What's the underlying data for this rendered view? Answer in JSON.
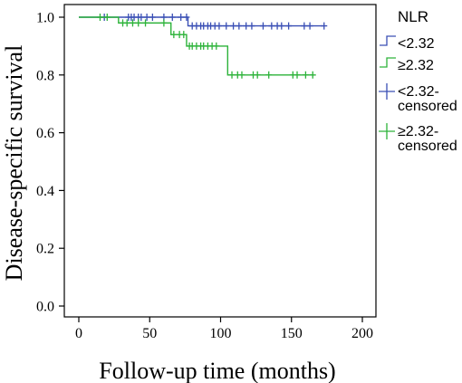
{
  "chart_data": {
    "type": "line",
    "subtype": "kaplan-meier",
    "xlabel": "Follow-up time (months)",
    "ylabel": "Disease-specific survival",
    "xlim": [
      0,
      200
    ],
    "ylim": [
      0,
      1.0
    ],
    "x_ticks": [
      0,
      50,
      100,
      150,
      200
    ],
    "x_tick_labels": [
      "0",
      "50",
      "100",
      "150",
      "200"
    ],
    "y_ticks": [
      0.0,
      0.2,
      0.4,
      0.6,
      0.8,
      1.0
    ],
    "y_tick_labels": [
      "0.0",
      "0.2",
      "0.4",
      "0.6",
      "0.8",
      "1.0"
    ],
    "grid": false,
    "legend_placement": "right",
    "legend_title": "NLR",
    "series": [
      {
        "name": "<2.32",
        "color": "#3a4fb5",
        "steps": [
          [
            0,
            1.0
          ],
          [
            77,
            1.0
          ],
          [
            77,
            0.97
          ],
          [
            173,
            0.97
          ]
        ],
        "censored": [
          [
            18,
            1.0
          ],
          [
            35,
            1.0
          ],
          [
            37,
            1.0
          ],
          [
            39,
            1.0
          ],
          [
            42,
            1.0
          ],
          [
            44,
            1.0
          ],
          [
            48,
            1.0
          ],
          [
            52,
            1.0
          ],
          [
            60,
            1.0
          ],
          [
            66,
            1.0
          ],
          [
            72,
            1.0
          ],
          [
            76,
            1.0
          ],
          [
            80,
            0.97
          ],
          [
            83,
            0.97
          ],
          [
            86,
            0.97
          ],
          [
            88,
            0.97
          ],
          [
            91,
            0.97
          ],
          [
            93,
            0.97
          ],
          [
            96,
            0.97
          ],
          [
            99,
            0.97
          ],
          [
            104,
            0.97
          ],
          [
            109,
            0.97
          ],
          [
            113,
            0.97
          ],
          [
            118,
            0.97
          ],
          [
            122,
            0.97
          ],
          [
            130,
            0.97
          ],
          [
            136,
            0.97
          ],
          [
            140,
            0.97
          ],
          [
            143,
            0.97
          ],
          [
            148,
            0.97
          ],
          [
            159,
            0.97
          ],
          [
            163,
            0.97
          ],
          [
            173,
            0.97
          ]
        ]
      },
      {
        "name": "≥2.32",
        "color": "#2db33a",
        "steps": [
          [
            0,
            1.0
          ],
          [
            28,
            1.0
          ],
          [
            28,
            0.98
          ],
          [
            65,
            0.98
          ],
          [
            65,
            0.94
          ],
          [
            76,
            0.94
          ],
          [
            76,
            0.9
          ],
          [
            105,
            0.9
          ],
          [
            105,
            0.8
          ],
          [
            165,
            0.8
          ]
        ],
        "censored": [
          [
            15,
            1.0
          ],
          [
            20,
            1.0
          ],
          [
            31,
            0.98
          ],
          [
            34,
            0.98
          ],
          [
            38,
            0.98
          ],
          [
            42,
            0.98
          ],
          [
            47,
            0.98
          ],
          [
            60,
            0.98
          ],
          [
            67,
            0.94
          ],
          [
            71,
            0.94
          ],
          [
            74,
            0.94
          ],
          [
            78,
            0.9
          ],
          [
            80,
            0.9
          ],
          [
            83,
            0.9
          ],
          [
            86,
            0.9
          ],
          [
            88,
            0.9
          ],
          [
            91,
            0.9
          ],
          [
            94,
            0.9
          ],
          [
            97,
            0.9
          ],
          [
            108,
            0.8
          ],
          [
            112,
            0.8
          ],
          [
            115,
            0.8
          ],
          [
            123,
            0.8
          ],
          [
            126,
            0.8
          ],
          [
            134,
            0.8
          ],
          [
            151,
            0.8
          ],
          [
            154,
            0.8
          ],
          [
            160,
            0.8
          ],
          [
            165,
            0.8
          ]
        ]
      }
    ],
    "legend_entries": [
      {
        "label": "<2.32",
        "marker": "step",
        "color": "#3a4fb5"
      },
      {
        "label": "≥2.32",
        "marker": "step",
        "color": "#2db33a"
      },
      {
        "label": "<2.32-",
        "label2": "censored",
        "marker": "plus",
        "color": "#3a4fb5"
      },
      {
        "label": "≥2.32-",
        "label2": "censored",
        "marker": "plus",
        "color": "#2db33a"
      }
    ]
  }
}
